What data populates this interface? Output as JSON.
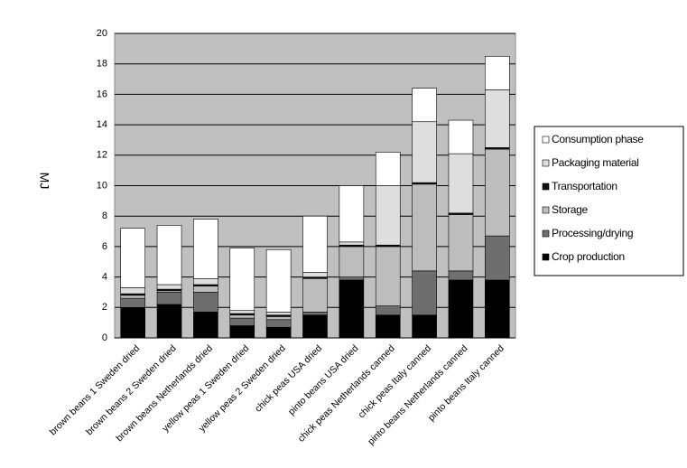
{
  "chart_data": {
    "type": "stacked_bar",
    "ylabel": "MJ",
    "categories": [
      "brown beans 1 Sweden dried",
      "brown beans 2 Sweden dried",
      "brown beans Netherlands dried",
      "yellow peas 1 Sweden dried",
      "yellow peas 2 Sweden dried",
      "chick peas USA dried",
      "pinto beans USA dried",
      "chick peas Netherlands canned",
      "chick peas Italy canned",
      "pinto beans Netherlands canned",
      "pinto beans Italy canned"
    ],
    "series": [
      {
        "name": "Crop production",
        "color": "#000000",
        "values": [
          2.0,
          2.2,
          1.7,
          0.8,
          0.7,
          1.5,
          3.8,
          1.5,
          1.5,
          3.8,
          3.8
        ]
      },
      {
        "name": "Processing/drying",
        "color": "#6e6e6e",
        "values": [
          0.6,
          0.8,
          1.3,
          0.5,
          0.5,
          0.2,
          0.2,
          0.6,
          2.9,
          0.6,
          2.9
        ]
      },
      {
        "name": "Storage",
        "color": "#bdbdbd",
        "values": [
          0.2,
          0.1,
          0.4,
          0.2,
          0.2,
          2.2,
          2.0,
          3.9,
          5.7,
          3.7,
          5.7
        ]
      },
      {
        "name": "Transportation",
        "color": "#111111",
        "values": [
          0.1,
          0.1,
          0.1,
          0.1,
          0.1,
          0.1,
          0.1,
          0.1,
          0.1,
          0.1,
          0.1
        ]
      },
      {
        "name": "Packaging material",
        "color": "#dedede",
        "values": [
          0.4,
          0.3,
          0.4,
          0.2,
          0.2,
          0.3,
          0.2,
          3.9,
          4.0,
          3.9,
          3.8
        ]
      },
      {
        "name": "Consumption phase",
        "color": "#ffffff",
        "values": [
          3.9,
          3.9,
          3.9,
          4.1,
          4.1,
          3.7,
          3.7,
          2.2,
          2.2,
          2.2,
          2.2
        ]
      }
    ],
    "ylim": [
      0,
      20
    ],
    "yticks": [
      0,
      2,
      4,
      6,
      8,
      10,
      12,
      14,
      16,
      18,
      20
    ],
    "grid": true,
    "legend": "right"
  }
}
